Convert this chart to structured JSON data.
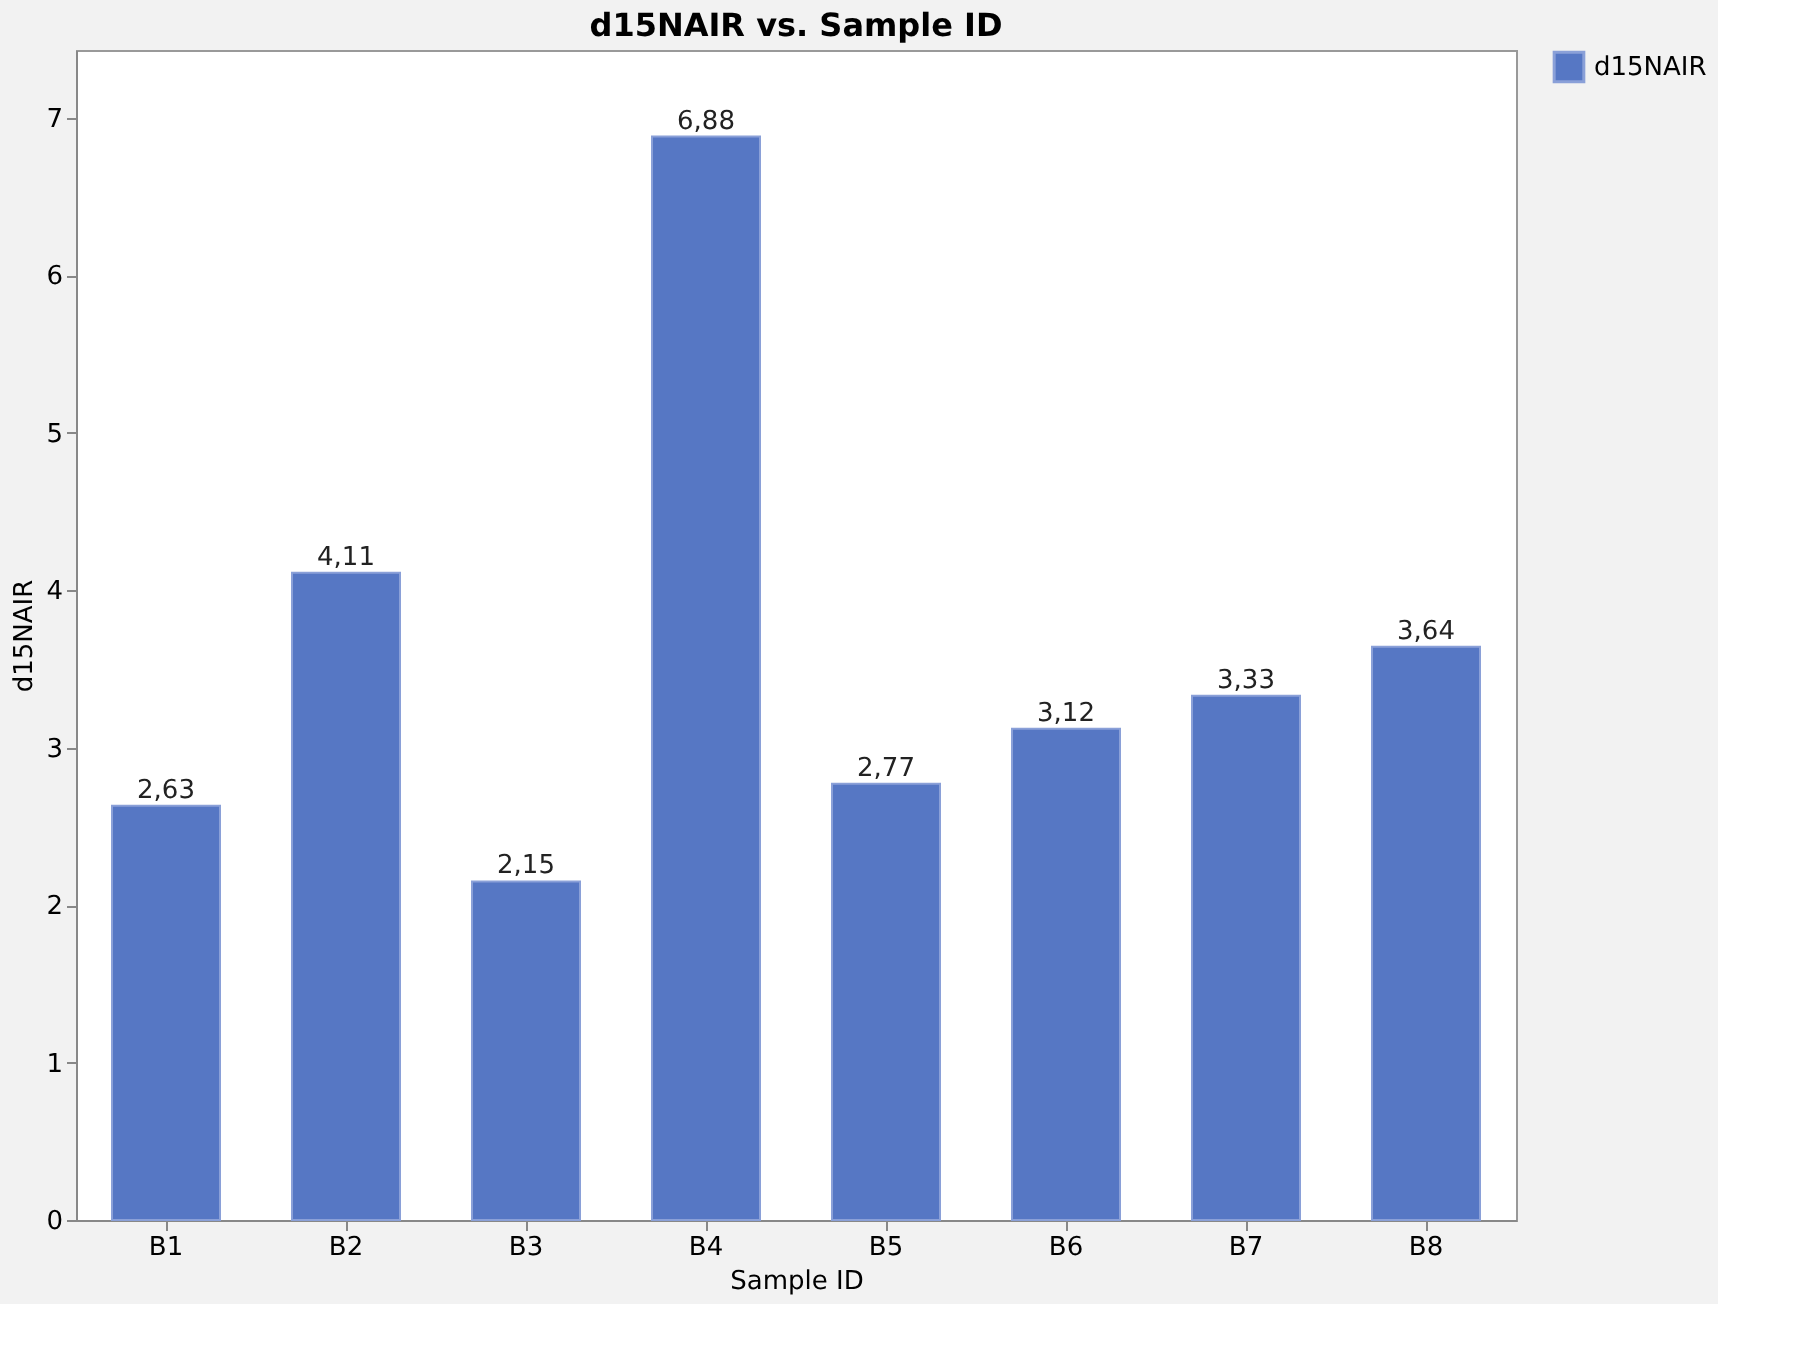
{
  "chart_data": {
    "type": "bar",
    "title": "d15NAIR vs. Sample ID",
    "xlabel": "Sample ID",
    "ylabel": "d15NAIR",
    "categories": [
      "B1",
      "B2",
      "B3",
      "B4",
      "B5",
      "B6",
      "B7",
      "B8"
    ],
    "series": [
      {
        "name": "d15NAIR",
        "color": "#5677c4",
        "values": [
          2.63,
          4.11,
          2.15,
          6.88,
          2.77,
          3.12,
          3.33,
          3.64
        ],
        "value_labels": [
          "2,63",
          "4,11",
          "2,15",
          "6,88",
          "2,77",
          "3,12",
          "3,33",
          "3,64"
        ]
      }
    ],
    "ylim": [
      0,
      7.43
    ],
    "yticks": [
      0,
      1,
      2,
      3,
      4,
      5,
      6,
      7
    ],
    "grid": false,
    "legend": "top right"
  }
}
